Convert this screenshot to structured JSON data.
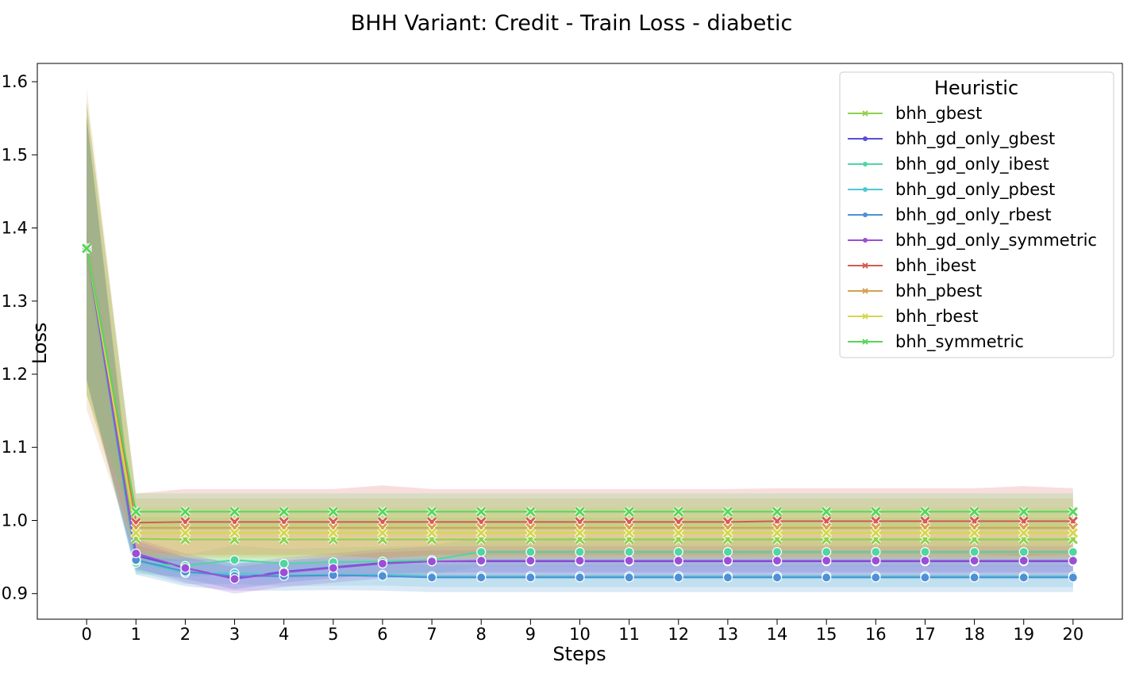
{
  "chart_data": {
    "type": "line",
    "title": "BHH Variant: Credit - Train Loss - diabetic",
    "xlabel": "Steps",
    "ylabel": "Loss",
    "xlim": [
      -1,
      21
    ],
    "ylim": [
      0.865,
      1.625
    ],
    "x_ticks": [
      "0",
      "1",
      "2",
      "3",
      "4",
      "5",
      "6",
      "7",
      "8",
      "9",
      "10",
      "11",
      "12",
      "13",
      "14",
      "15",
      "16",
      "17",
      "18",
      "19",
      "20"
    ],
    "y_ticks": [
      "0.9",
      "1.0",
      "1.1",
      "1.2",
      "1.3",
      "1.4",
      "1.5",
      "1.6"
    ],
    "y_tick_values": [
      0.9,
      1.0,
      1.1,
      1.2,
      1.3,
      1.4,
      1.5,
      1.6
    ],
    "grid": false,
    "legend": {
      "title": "Heuristic",
      "placement": "top-right"
    },
    "x": [
      0,
      1,
      2,
      3,
      4,
      5,
      6,
      7,
      8,
      9,
      10,
      11,
      12,
      13,
      14,
      15,
      16,
      17,
      18,
      19,
      20
    ],
    "series": [
      {
        "name": "bhh_gbest",
        "color": "#8fd14f",
        "marker": "x",
        "values": [
          1.372,
          0.975,
          0.974,
          0.974,
          0.974,
          0.974,
          0.974,
          0.974,
          0.974,
          0.974,
          0.974,
          0.974,
          0.974,
          0.974,
          0.974,
          0.974,
          0.974,
          0.974,
          0.974,
          0.974,
          0.974
        ],
        "band": [
          0.03,
          0.03,
          0.03,
          0.03,
          0.03,
          0.03,
          0.03,
          0.03,
          0.03,
          0.03,
          0.03,
          0.03,
          0.03,
          0.03,
          0.03,
          0.03,
          0.03,
          0.03,
          0.03,
          0.03,
          0.03
        ]
      },
      {
        "name": "bhh_gd_only_gbest",
        "color": "#5a4fd6",
        "marker": "o",
        "values": [
          1.372,
          0.952,
          0.935,
          0.921,
          0.93,
          0.936,
          0.942,
          0.944,
          0.944,
          0.944,
          0.944,
          0.944,
          0.944,
          0.944,
          0.944,
          0.944,
          0.944,
          0.944,
          0.944,
          0.944,
          0.944
        ],
        "band": [
          0.18,
          0.02,
          0.015,
          0.015,
          0.015,
          0.015,
          0.015,
          0.015,
          0.015,
          0.015,
          0.015,
          0.015,
          0.015,
          0.015,
          0.015,
          0.015,
          0.015,
          0.015,
          0.015,
          0.015,
          0.015
        ]
      },
      {
        "name": "bhh_gd_only_ibest",
        "color": "#4fd6a1",
        "marker": "o",
        "values": [
          1.372,
          0.942,
          0.938,
          0.946,
          0.941,
          0.943,
          0.944,
          0.946,
          0.957,
          0.957,
          0.957,
          0.957,
          0.957,
          0.957,
          0.957,
          0.957,
          0.957,
          0.957,
          0.957,
          0.957,
          0.957
        ],
        "band": [
          0.18,
          0.015,
          0.015,
          0.02,
          0.02,
          0.02,
          0.02,
          0.02,
          0.02,
          0.02,
          0.02,
          0.02,
          0.02,
          0.02,
          0.02,
          0.02,
          0.02,
          0.02,
          0.02,
          0.02,
          0.02
        ]
      },
      {
        "name": "bhh_gd_only_pbest",
        "color": "#4fc9d1",
        "marker": "o",
        "values": [
          1.372,
          0.945,
          0.928,
          0.928,
          0.925,
          0.926,
          0.926,
          0.924,
          0.924,
          0.924,
          0.924,
          0.924,
          0.924,
          0.924,
          0.924,
          0.924,
          0.924,
          0.924,
          0.924,
          0.924,
          0.924
        ],
        "band": [
          0.18,
          0.015,
          0.015,
          0.015,
          0.015,
          0.015,
          0.015,
          0.015,
          0.015,
          0.015,
          0.015,
          0.015,
          0.015,
          0.015,
          0.015,
          0.015,
          0.015,
          0.015,
          0.015,
          0.015,
          0.015
        ]
      },
      {
        "name": "bhh_gd_only_rbest",
        "color": "#4f8fd6",
        "marker": "o",
        "values": [
          1.372,
          0.946,
          0.93,
          0.924,
          0.924,
          0.925,
          0.924,
          0.922,
          0.922,
          0.922,
          0.922,
          0.922,
          0.922,
          0.922,
          0.922,
          0.922,
          0.922,
          0.922,
          0.922,
          0.922,
          0.922
        ],
        "band": [
          0.18,
          0.02,
          0.02,
          0.02,
          0.02,
          0.02,
          0.02,
          0.02,
          0.02,
          0.02,
          0.02,
          0.02,
          0.02,
          0.02,
          0.02,
          0.02,
          0.02,
          0.02,
          0.02,
          0.02,
          0.02
        ]
      },
      {
        "name": "bhh_gd_only_symmetric",
        "color": "#9a4fd6",
        "marker": "o",
        "values": [
          1.372,
          0.955,
          0.935,
          0.92,
          0.929,
          0.935,
          0.941,
          0.944,
          0.945,
          0.945,
          0.945,
          0.945,
          0.945,
          0.945,
          0.945,
          0.945,
          0.945,
          0.945,
          0.945,
          0.945,
          0.945
        ],
        "band": [
          0.18,
          0.02,
          0.02,
          0.02,
          0.02,
          0.02,
          0.02,
          0.02,
          0.02,
          0.02,
          0.02,
          0.02,
          0.02,
          0.02,
          0.02,
          0.02,
          0.02,
          0.02,
          0.02,
          0.02,
          0.02
        ]
      },
      {
        "name": "bhh_ibest",
        "color": "#d65a4f",
        "marker": "x",
        "values": [
          1.372,
          0.997,
          0.998,
          0.998,
          0.998,
          0.998,
          0.998,
          0.998,
          0.998,
          0.998,
          0.998,
          0.998,
          0.998,
          0.998,
          0.999,
          0.999,
          0.999,
          0.999,
          0.999,
          0.999,
          0.999
        ],
        "band": [
          0.2,
          0.04,
          0.045,
          0.045,
          0.045,
          0.045,
          0.05,
          0.045,
          0.045,
          0.045,
          0.045,
          0.045,
          0.045,
          0.045,
          0.045,
          0.045,
          0.045,
          0.045,
          0.045,
          0.048,
          0.045
        ]
      },
      {
        "name": "bhh_pbest",
        "color": "#d6a14f",
        "marker": "x",
        "values": [
          1.372,
          0.99,
          0.99,
          0.99,
          0.99,
          0.99,
          0.99,
          0.99,
          0.99,
          0.99,
          0.99,
          0.99,
          0.99,
          0.99,
          0.99,
          0.99,
          0.99,
          0.99,
          0.99,
          0.99,
          0.99
        ],
        "band": [
          0.22,
          0.04,
          0.04,
          0.04,
          0.04,
          0.04,
          0.04,
          0.04,
          0.04,
          0.04,
          0.04,
          0.04,
          0.04,
          0.04,
          0.04,
          0.04,
          0.04,
          0.04,
          0.04,
          0.04,
          0.04
        ]
      },
      {
        "name": "bhh_rbest",
        "color": "#d6d64f",
        "marker": "x",
        "values": [
          1.372,
          0.983,
          0.983,
          0.983,
          0.983,
          0.983,
          0.983,
          0.983,
          0.983,
          0.983,
          0.983,
          0.983,
          0.983,
          0.983,
          0.983,
          0.983,
          0.983,
          0.983,
          0.983,
          0.983,
          0.983
        ],
        "band": [
          0.2,
          0.035,
          0.035,
          0.035,
          0.035,
          0.035,
          0.035,
          0.035,
          0.035,
          0.035,
          0.035,
          0.035,
          0.035,
          0.035,
          0.035,
          0.035,
          0.035,
          0.035,
          0.035,
          0.035,
          0.035
        ]
      },
      {
        "name": "bhh_symmetric",
        "color": "#5ad65a",
        "marker": "x",
        "values": [
          1.372,
          1.012,
          1.012,
          1.012,
          1.012,
          1.012,
          1.012,
          1.012,
          1.012,
          1.012,
          1.012,
          1.012,
          1.012,
          1.012,
          1.012,
          1.012,
          1.012,
          1.012,
          1.012,
          1.012,
          1.012
        ],
        "band": [
          0.2,
          0.025,
          0.025,
          0.025,
          0.025,
          0.025,
          0.025,
          0.025,
          0.025,
          0.025,
          0.025,
          0.025,
          0.025,
          0.025,
          0.025,
          0.025,
          0.025,
          0.025,
          0.025,
          0.025,
          0.025
        ]
      }
    ]
  }
}
